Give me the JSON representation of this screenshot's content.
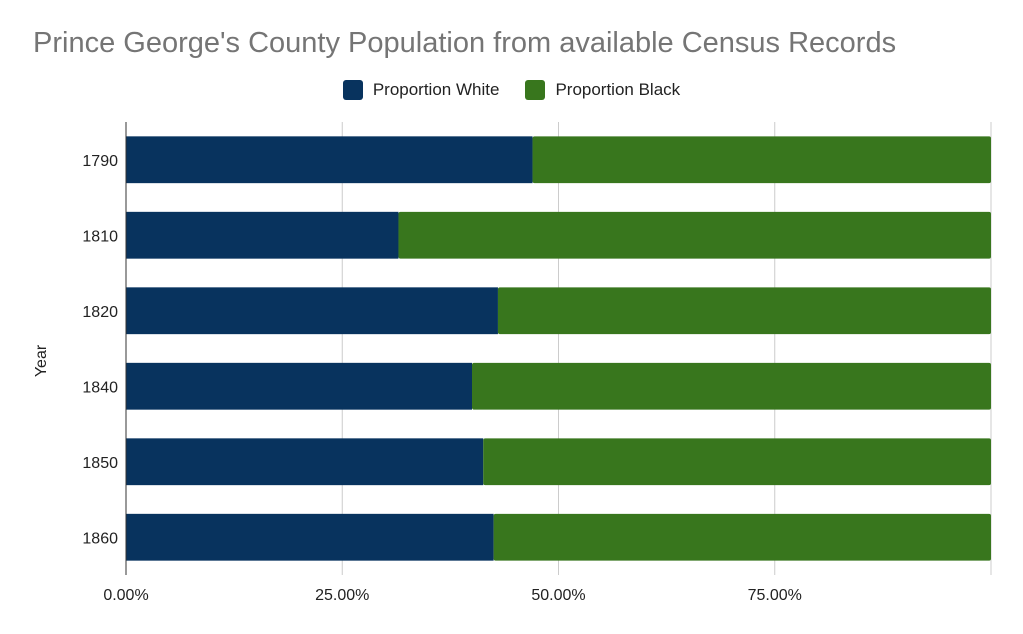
{
  "chart_data": {
    "type": "bar",
    "orientation": "horizontal",
    "stacked": true,
    "title": "Prince George's County Population from available Census Records",
    "ylabel": "Year",
    "xlabel": "",
    "categories": [
      "1790",
      "1810",
      "1820",
      "1840",
      "1850",
      "1860"
    ],
    "series": [
      {
        "name": "Proportion White",
        "color": "#08335e",
        "values": [
          0.47,
          0.315,
          0.43,
          0.4,
          0.413,
          0.425
        ]
      },
      {
        "name": "Proportion Black",
        "color": "#38761d",
        "values": [
          0.53,
          0.685,
          0.57,
          0.6,
          0.587,
          0.575
        ]
      }
    ],
    "xlim": [
      0,
      1
    ],
    "x_ticks": [
      0,
      0.25,
      0.5,
      0.75,
      1.0
    ],
    "x_tick_labels": [
      "0.00%",
      "25.00%",
      "50.00%",
      "75.00%",
      ""
    ],
    "grid": true,
    "legend_position": "top"
  }
}
